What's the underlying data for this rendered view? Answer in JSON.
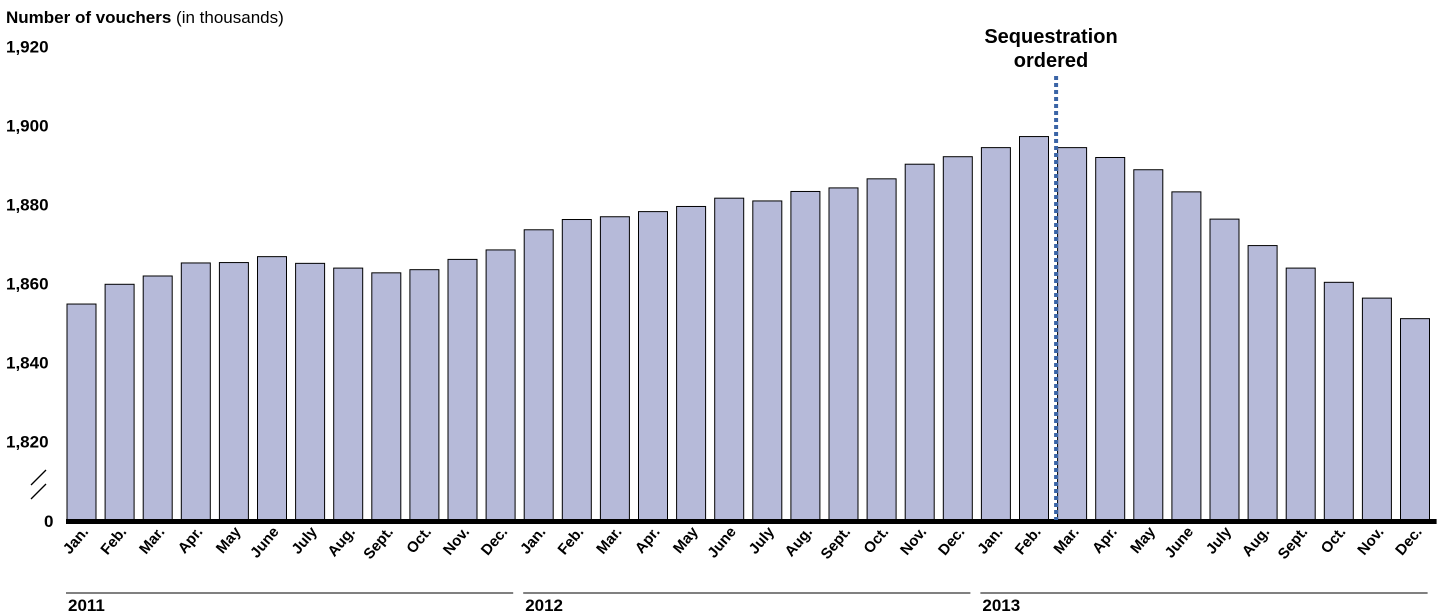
{
  "chart_data": {
    "type": "bar",
    "title_bold": "Number of vouchers",
    "title_rest": " (in thousands)",
    "yticks": [
      {
        "value": 1920,
        "label": "1,920"
      },
      {
        "value": 1900,
        "label": "1,900"
      },
      {
        "value": 1880,
        "label": "1,880"
      },
      {
        "value": 1860,
        "label": "1,860"
      },
      {
        "value": 1840,
        "label": "1,840"
      },
      {
        "value": 1820,
        "label": "1,820"
      }
    ],
    "zero_label": "0",
    "axis_break": true,
    "ylim": [
      1800,
      1920
    ],
    "categories": [
      "Jan.",
      "Feb.",
      "Mar.",
      "Apr.",
      "May",
      "June",
      "July",
      "Aug.",
      "Sept.",
      "Oct.",
      "Nov.",
      "Dec.",
      "Jan.",
      "Feb.",
      "Mar.",
      "Apr.",
      "May",
      "June",
      "July",
      "Aug.",
      "Sept.",
      "Oct.",
      "Nov.",
      "Dec.",
      "Jan.",
      "Feb.",
      "Mar.",
      "Apr.",
      "May",
      "June",
      "July",
      "Aug.",
      "Sept.",
      "Oct.",
      "Nov.",
      "Dec."
    ],
    "values": [
      1854.8,
      1859.8,
      1861.9,
      1865.2,
      1865.3,
      1866.8,
      1865.1,
      1863.9,
      1862.7,
      1863.5,
      1866.1,
      1868.5,
      1873.6,
      1876.2,
      1876.9,
      1878.2,
      1879.5,
      1881.6,
      1880.9,
      1883.3,
      1884.2,
      1886.5,
      1890.2,
      1892.1,
      1894.4,
      1897.2,
      1894.4,
      1891.9,
      1888.8,
      1883.2,
      1876.3,
      1869.6,
      1863.9,
      1860.3,
      1856.3,
      1851.1
    ],
    "years": [
      "2011",
      "2012",
      "2013"
    ],
    "annotation": {
      "line1": "Sequestration",
      "line2": "ordered",
      "after_index": 25
    },
    "colors": {
      "bar_fill": "#b6bad9",
      "bar_stroke": "#000000",
      "marker": "#3a64a6",
      "axis": "#000000"
    }
  }
}
